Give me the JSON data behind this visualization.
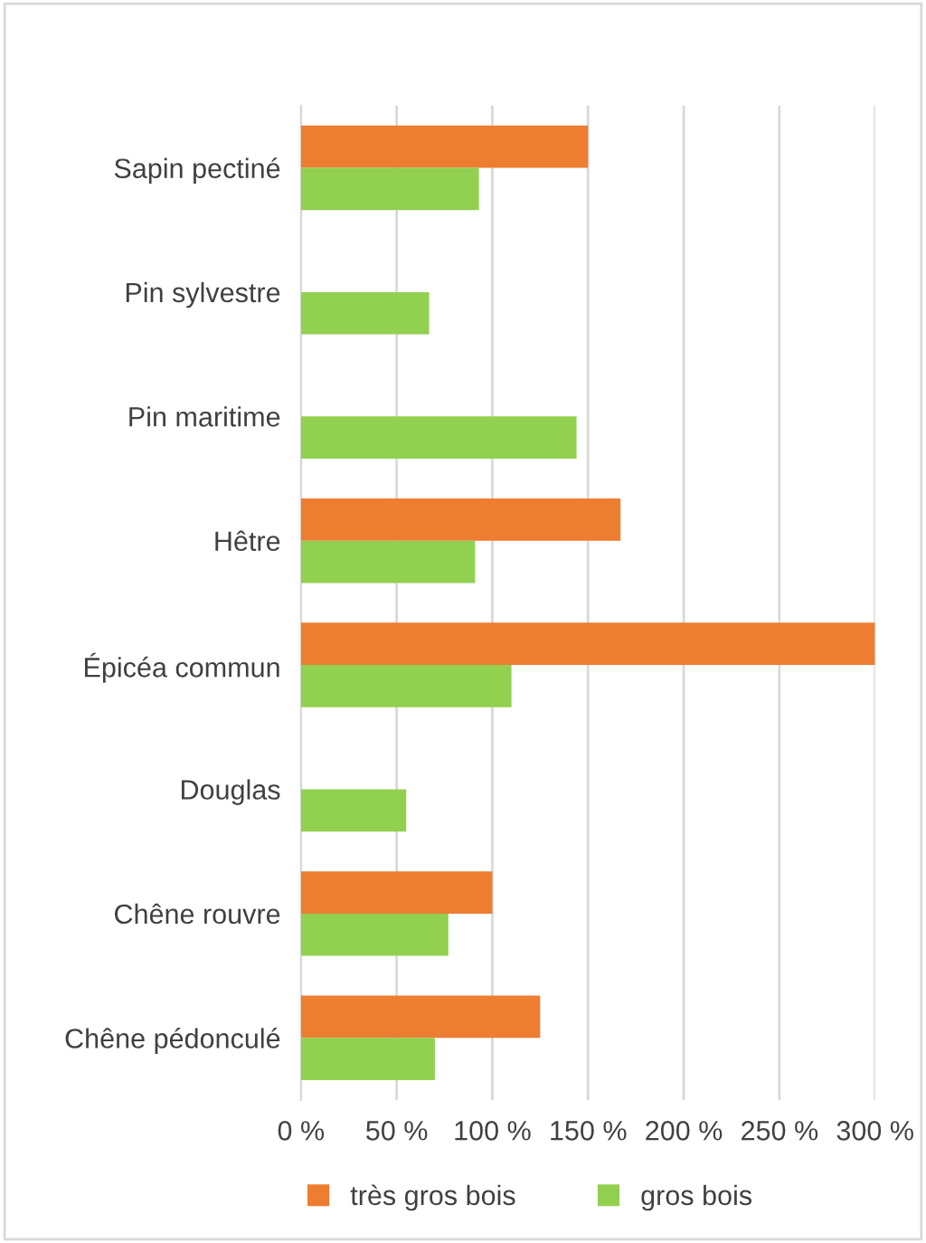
{
  "chart_data": {
    "type": "bar",
    "orientation": "horizontal",
    "categories": [
      "Sapin pectiné",
      "Pin sylvestre",
      "Pin maritime",
      "Hêtre",
      "Épicéa commun",
      "Douglas",
      "Chêne rouvre",
      "Chêne pédonculé"
    ],
    "series": [
      {
        "name": "très gros bois",
        "color": "#ed7d31",
        "values": [
          150,
          null,
          null,
          167,
          300,
          null,
          100,
          125
        ]
      },
      {
        "name": "gros bois",
        "color": "#92d050",
        "values": [
          93,
          67,
          144,
          91,
          110,
          55,
          77,
          70
        ]
      }
    ],
    "xlim": [
      0,
      300
    ],
    "xticks": [
      {
        "value": 0,
        "label": "0 %"
      },
      {
        "value": 50,
        "label": "50 %"
      },
      {
        "value": 100,
        "label": "100 %"
      },
      {
        "value": 150,
        "label": "150 %"
      },
      {
        "value": 200,
        "label": "200 %"
      },
      {
        "value": 250,
        "label": "250 %"
      },
      {
        "value": 300,
        "label": "300 %"
      }
    ],
    "grid": "x",
    "legend": "bottom"
  }
}
